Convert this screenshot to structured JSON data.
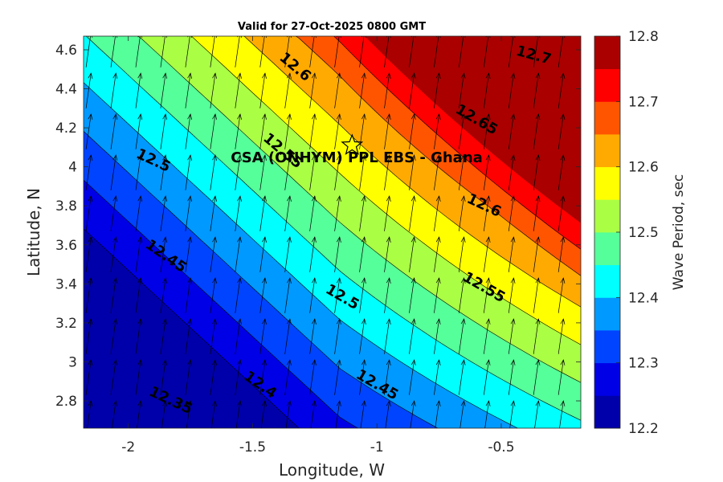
{
  "chart_data": {
    "type": "contourf",
    "title": "Valid for 27-Oct-2025 0800 GMT",
    "xlabel": "Longitude, W",
    "ylabel": "Latitude, N",
    "xlim": [
      -2.18,
      -0.18
    ],
    "ylim": [
      2.66,
      4.67
    ],
    "xticks": [
      -2,
      -1.5,
      -1,
      -0.5
    ],
    "xtick_labels": [
      "-2",
      "-1.5",
      "-1",
      "-0.5"
    ],
    "yticks": [
      2.8,
      3,
      3.2,
      3.4,
      3.6,
      3.8,
      4,
      4.2,
      4.4,
      4.6
    ],
    "ytick_labels": [
      "2.8",
      "3",
      "3.2",
      "3.4",
      "3.6",
      "3.8",
      "4",
      "4.2",
      "4.4",
      "4.6"
    ],
    "colorbar": {
      "label": "Wave Period, sec",
      "range": [
        12.2,
        12.8
      ],
      "ticks": [
        12.2,
        12.3,
        12.4,
        12.5,
        12.6,
        12.7,
        12.8
      ],
      "tick_labels": [
        "12.2",
        "12.3",
        "12.4",
        "12.5",
        "12.6",
        "12.7",
        "12.8"
      ],
      "colors": [
        "#0000aa",
        "#0000e6",
        "#0044ff",
        "#0099ff",
        "#00ffff",
        "#55ff99",
        "#aaff44",
        "#ffff00",
        "#ffaa00",
        "#ff5500",
        "#ff0000",
        "#aa0000"
      ]
    },
    "contour_levels": [
      12.25,
      12.3,
      12.35,
      12.4,
      12.45,
      12.5,
      12.55,
      12.6,
      12.65,
      12.7
    ],
    "contour_labels": [
      {
        "text": "12.6",
        "lon": -1.33,
        "lat": 4.51,
        "angle": 40
      },
      {
        "text": "12.7",
        "lon": -0.37,
        "lat": 4.57,
        "angle": 15
      },
      {
        "text": "12.65",
        "lon": -0.6,
        "lat": 4.24,
        "angle": 30
      },
      {
        "text": "12.55",
        "lon": -1.38,
        "lat": 4.08,
        "angle": 40
      },
      {
        "text": "12.5",
        "lon": -1.9,
        "lat": 4.03,
        "angle": 25
      },
      {
        "text": "12.6",
        "lon": -0.57,
        "lat": 3.8,
        "angle": 25
      },
      {
        "text": "12.45",
        "lon": -1.85,
        "lat": 3.54,
        "angle": 35
      },
      {
        "text": "12.5",
        "lon": -1.14,
        "lat": 3.33,
        "angle": 30
      },
      {
        "text": "12.55",
        "lon": -0.57,
        "lat": 3.38,
        "angle": 30
      },
      {
        "text": "12.35",
        "lon": -1.83,
        "lat": 2.8,
        "angle": 25
      },
      {
        "text": "12.4",
        "lon": -1.47,
        "lat": 2.88,
        "angle": 35
      },
      {
        "text": "12.45",
        "lon": -1.0,
        "lat": 2.88,
        "angle": 30
      }
    ],
    "site": {
      "name": "CSA (ONHYM) PPL EBS  - Ghana",
      "lon": -1.1,
      "lat": 4.11,
      "marker": "star"
    },
    "vectors": {
      "direction_note": "wave direction arrows pointing roughly north-northeast",
      "dx": 0.02,
      "dy": 0.18
    }
  }
}
